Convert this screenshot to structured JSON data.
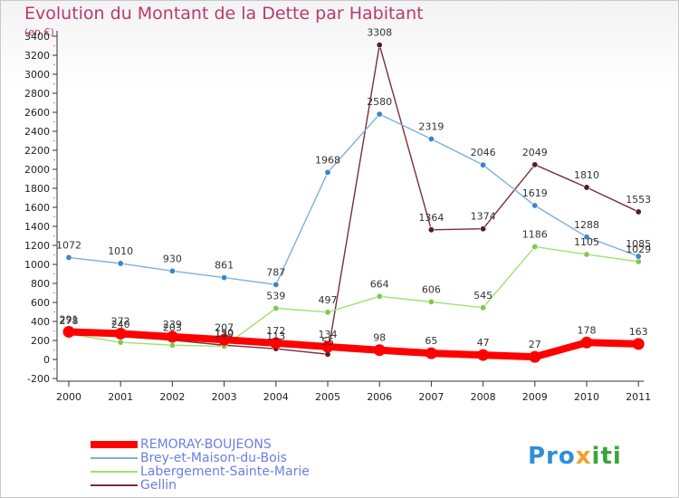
{
  "header": {
    "title": "Evolution du Montant de la Dette par Habitant",
    "subtitle": "(en €)"
  },
  "brand": {
    "part1": "Pro",
    "part2": "x",
    "part3": "iti"
  },
  "chart_data": {
    "type": "line",
    "title": "Evolution du Montant de la Dette par Habitant",
    "subtitle": "(en €)",
    "xlabel": "",
    "ylabel": "",
    "x": [
      "2000",
      "2001",
      "2002",
      "2003",
      "2004",
      "2005",
      "2006",
      "2007",
      "2008",
      "2009",
      "2010",
      "2011"
    ],
    "ylim": [
      -200,
      3400
    ],
    "yticks": [
      -200,
      0,
      200,
      400,
      600,
      800,
      1000,
      1200,
      1400,
      1600,
      1800,
      2000,
      2200,
      2400,
      2600,
      2800,
      3000,
      3200,
      3400
    ],
    "grid": false,
    "legend_position": "bottom-left",
    "series": [
      {
        "name": "Gellin",
        "color": "#7a2e3a",
        "marker": "#5a1a24",
        "values": [
          278,
          240,
          203,
          150,
          113,
          55,
          3308,
          1364,
          1374,
          2049,
          1810,
          1553
        ],
        "labels": [
          "278",
          "",
          "203",
          "150",
          "113",
          "55",
          "3308",
          "1364",
          "1374",
          "2049",
          "1810",
          "1553"
        ]
      },
      {
        "name": "Labergement-Sainte-Marie",
        "color": "#9ee36e",
        "marker": "#7ec850",
        "values": [
          270,
          180,
          150,
          139,
          539,
          497,
          664,
          606,
          545,
          1186,
          1105,
          1029
        ],
        "labels": [
          "",
          "",
          "",
          "",
          "539",
          "497",
          "664",
          "606",
          "545",
          "1186",
          "1105",
          "1029"
        ]
      },
      {
        "name": "Brey-et-Maison-du-Bois",
        "color": "#7fb0dc",
        "marker": "#3a86c8",
        "values": [
          1072,
          1010,
          930,
          861,
          787,
          1968,
          2580,
          2319,
          2046,
          1619,
          1288,
          1085
        ],
        "labels": [
          "1072",
          "1010",
          "930",
          "861",
          "787",
          "1968",
          "2580",
          "2319",
          "2046",
          "1619",
          "1288",
          "1085"
        ]
      },
      {
        "name": "REMORAY-BOUJEONS",
        "color": "#ff0000",
        "marker": "#ff0000",
        "thick": true,
        "values": [
          291,
          272,
          239,
          207,
          172,
          134,
          98,
          65,
          47,
          27,
          178,
          163
        ],
        "labels": [
          "291",
          "272",
          "239",
          "207",
          "172",
          "134",
          "98",
          "65",
          "47",
          "27",
          "178",
          "163"
        ]
      }
    ],
    "legend_order": [
      "REMORAY-BOUJEONS",
      "Brey-et-Maison-du-Bois",
      "Labergement-Sainte-Marie",
      "Gellin"
    ],
    "extra_labels": [
      {
        "series": "Gellin",
        "index": 1,
        "text": "240"
      },
      {
        "series": "Labergement-Sainte-Marie",
        "index": 3,
        "text": "139"
      }
    ]
  }
}
